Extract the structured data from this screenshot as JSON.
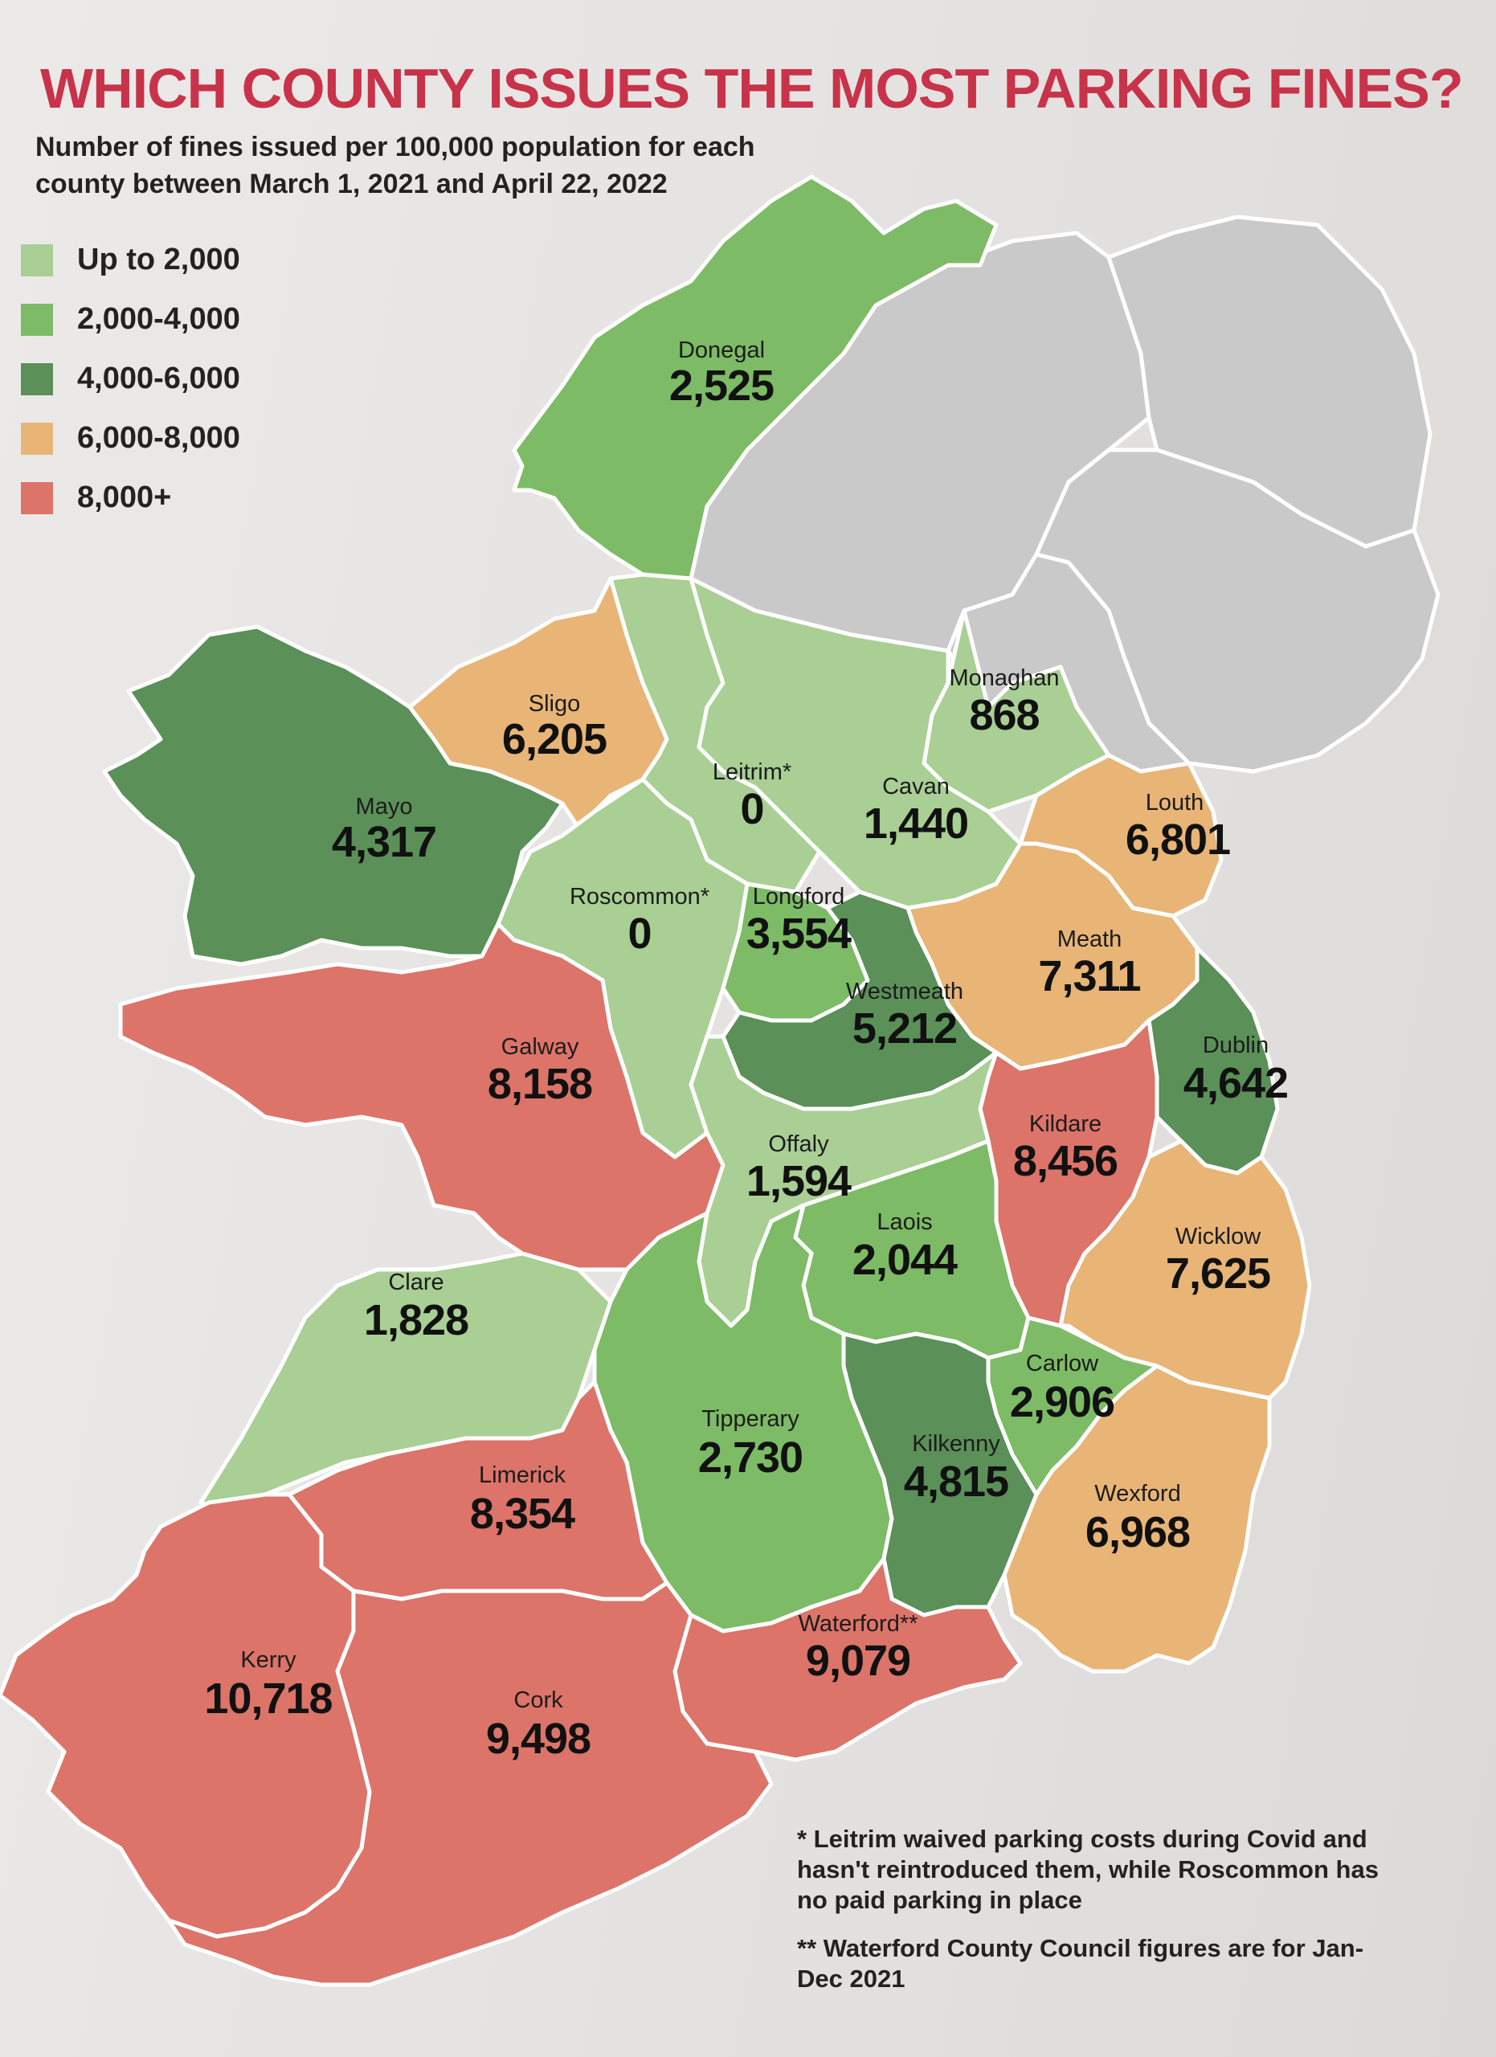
{
  "title": "WHICH COUNTY ISSUES THE MOST PARKING FINES?",
  "subtitle": "Number of fines issued per 100,000 population for each county between March 1, 2021 and April 22, 2022",
  "legend": [
    {
      "label": "Up to 2,000",
      "color": "#a9cf94"
    },
    {
      "label": "2,000-4,000",
      "color": "#7dbb66"
    },
    {
      "label": "4,000-6,000",
      "color": "#5b9058"
    },
    {
      "label": "6,000-8,000",
      "color": "#e8b577"
    },
    {
      "label": "8,000+",
      "color": "#dc7469"
    }
  ],
  "colors": {
    "northern_ireland": "#c9c9c9",
    "title": "#c8334a",
    "border": "#ffffff"
  },
  "counties": [
    {
      "name": "Donegal",
      "value": "2,525",
      "band": 1
    },
    {
      "name": "Sligo",
      "value": "6,205",
      "band": 3
    },
    {
      "name": "Mayo",
      "value": "4,317",
      "band": 2
    },
    {
      "name": "Leitrim*",
      "value": "0",
      "band": 0
    },
    {
      "name": "Monaghan",
      "value": "868",
      "band": 0
    },
    {
      "name": "Cavan",
      "value": "1,440",
      "band": 0
    },
    {
      "name": "Louth",
      "value": "6,801",
      "band": 3
    },
    {
      "name": "Roscommon*",
      "value": "0",
      "band": 0
    },
    {
      "name": "Longford",
      "value": "3,554",
      "band": 1
    },
    {
      "name": "Meath",
      "value": "7,311",
      "band": 3
    },
    {
      "name": "Westmeath",
      "value": "5,212",
      "band": 2
    },
    {
      "name": "Galway",
      "value": "8,158",
      "band": 4
    },
    {
      "name": "Dublin",
      "value": "4,642",
      "band": 2
    },
    {
      "name": "Kildare",
      "value": "8,456",
      "band": 4
    },
    {
      "name": "Offaly",
      "value": "1,594",
      "band": 0
    },
    {
      "name": "Laois",
      "value": "2,044",
      "band": 1
    },
    {
      "name": "Wicklow",
      "value": "7,625",
      "band": 3
    },
    {
      "name": "Clare",
      "value": "1,828",
      "band": 0
    },
    {
      "name": "Carlow",
      "value": "2,906",
      "band": 1
    },
    {
      "name": "Tipperary",
      "value": "2,730",
      "band": 1
    },
    {
      "name": "Kilkenny",
      "value": "4,815",
      "band": 2
    },
    {
      "name": "Limerick",
      "value": "8,354",
      "band": 4
    },
    {
      "name": "Wexford",
      "value": "6,968",
      "band": 3
    },
    {
      "name": "Waterford**",
      "value": "9,079",
      "band": 4
    },
    {
      "name": "Kerry",
      "value": "10,718",
      "band": 4
    },
    {
      "name": "Cork",
      "value": "9,498",
      "band": 4
    }
  ],
  "notes": [
    "* Leitrim waived parking costs during Covid and hasn't reintroduced them, while Roscommon has no paid parking in place",
    "** Waterford County Council figures are for Jan-Dec 2021"
  ]
}
